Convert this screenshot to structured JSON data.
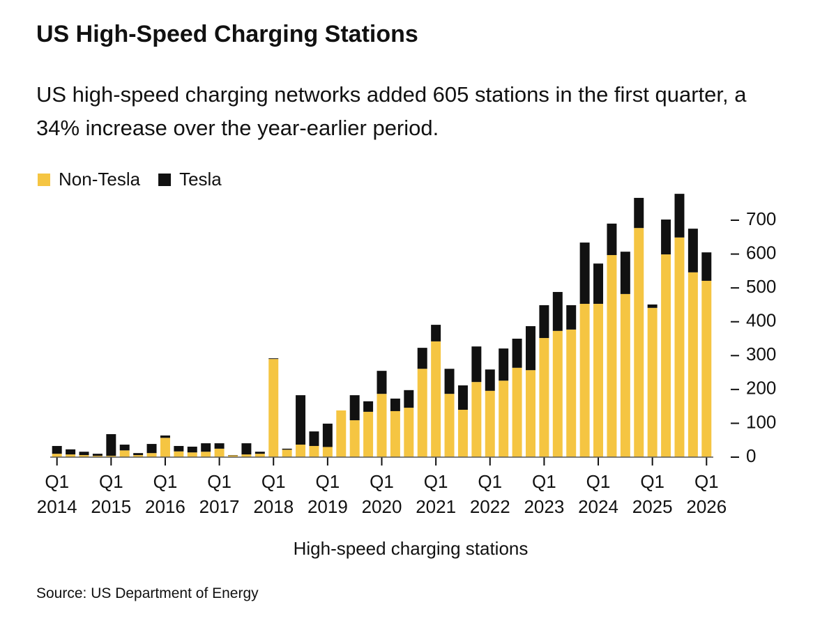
{
  "chart_data": {
    "type": "stacked_bar",
    "title": "US High-Speed Charging Stations",
    "subtitle": "US high-speed charging networks added 605 stations in the first quarter, a 34% increase over the year-earlier period.",
    "x_label": "High-speed charging stations",
    "source": "Source: US Department of Energy",
    "categories": [
      "Q1 2014",
      null,
      null,
      null,
      "Q1 2015",
      null,
      null,
      null,
      "Q1 2016",
      null,
      null,
      null,
      "Q1 2017",
      null,
      null,
      null,
      "Q1 2018",
      null,
      null,
      null,
      "Q1 2019",
      null,
      null,
      null,
      "Q1 2020",
      null,
      null,
      null,
      "Q1 2021",
      null,
      null,
      null,
      "Q1 2022",
      null,
      null,
      null,
      "Q1 2023",
      null,
      null,
      null,
      "Q1 2024",
      null,
      null,
      null,
      "Q1 2025",
      null,
      null,
      null,
      "Q1 2026"
    ],
    "series": [
      {
        "name": "Non-Tesla",
        "color": "#f5c542",
        "values": [
          10,
          8,
          6,
          4,
          4,
          20,
          6,
          12,
          57,
          17,
          14,
          16,
          25,
          5,
          8,
          10,
          290,
          22,
          37,
          33,
          30,
          138,
          109,
          134,
          187,
          136,
          146,
          261,
          342,
          187,
          140,
          222,
          196,
          226,
          264,
          257,
          352,
          373,
          377,
          453,
          453,
          597,
          482,
          677,
          441,
          599,
          649,
          546,
          521
        ]
      },
      {
        "name": "Tesla",
        "color": "#111111",
        "values": [
          23,
          15,
          10,
          6,
          64,
          17,
          6,
          27,
          7,
          16,
          17,
          25,
          16,
          1,
          33,
          6,
          2,
          3,
          146,
          43,
          69,
          0,
          74,
          31,
          68,
          37,
          52,
          62,
          49,
          74,
          72,
          105,
          63,
          95,
          86,
          130,
          97,
          115,
          72,
          181,
          119,
          93,
          125,
          89,
          10,
          103,
          129,
          129,
          84
        ]
      }
    ],
    "ylim": [
      0,
      800
    ],
    "yticks": [
      0,
      100,
      200,
      300,
      400,
      500,
      600,
      700
    ],
    "y_axis_side": "right",
    "legend": "top-left"
  }
}
